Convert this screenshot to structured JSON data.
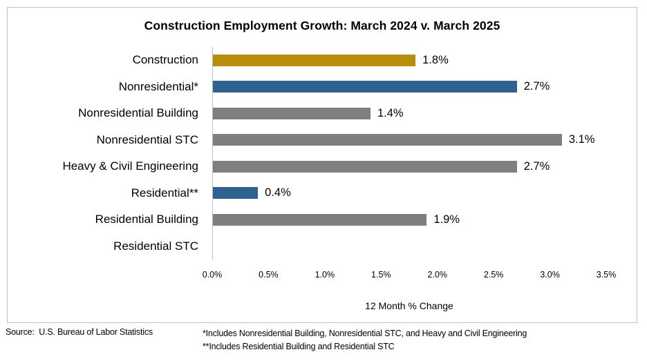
{
  "chart_data": {
    "type": "bar",
    "orientation": "horizontal",
    "title": "Construction Employment Growth: March 2024 v. March 2025",
    "categories": [
      "Construction",
      "Nonresidential*",
      "Nonresidential Building",
      "Nonresidential STC",
      "Heavy & Civil Engineering",
      "Residential**",
      "Residential Building",
      "Residential STC"
    ],
    "values": [
      1.8,
      2.7,
      1.4,
      3.1,
      2.7,
      0.4,
      1.9,
      0.0
    ],
    "value_labels": [
      "1.8%",
      "2.7%",
      "1.4%",
      "3.1%",
      "2.7%",
      "0.4%",
      "1.9%",
      ""
    ],
    "bar_colors": [
      "#B98C0A",
      "#2F6092",
      "#7F7F7F",
      "#7F7F7F",
      "#7F7F7F",
      "#2F6092",
      "#7F7F7F",
      "#7F7F7F"
    ],
    "xlabel": "12 Month % Change",
    "xlim": [
      0,
      3.5
    ],
    "x_ticks": [
      "0.0%",
      "0.5%",
      "1.0%",
      "1.5%",
      "2.0%",
      "2.5%",
      "3.0%",
      "3.5%"
    ],
    "grid": false,
    "legend": "none"
  },
  "colors": {
    "gold": "#B98C0A",
    "blue": "#2F6092",
    "gray": "#7F7F7F",
    "axis_line": "#BFBFBF",
    "border": "#C0C0C0",
    "text": "#000000"
  },
  "footer": {
    "source": "Source:  U.S. Bureau of Labor Statistics",
    "footnote_line1": "*Includes Nonresidential Building, Nonresidential STC, and Heavy and Civil Engineering",
    "footnote_line2": "**Includes Residential Building and Residential STC"
  }
}
